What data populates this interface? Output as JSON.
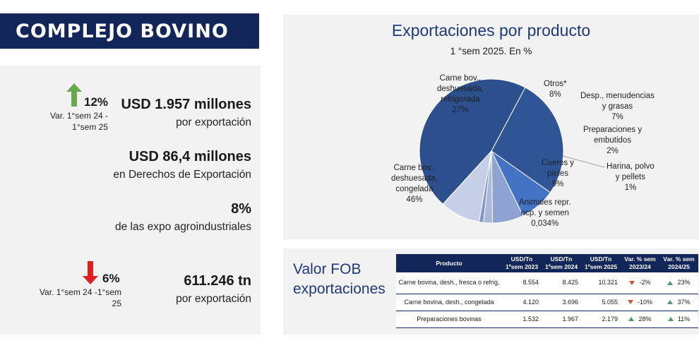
{
  "header": {
    "title": "COMPLEJO BOVINO"
  },
  "stats": {
    "export_value": {
      "amount": "USD 1.957 millones",
      "label": "por exportación",
      "var_pct": "12%",
      "var_label_1": "Var.  1°sem 24 -",
      "var_label_2": "1°sem 25",
      "direction": "up"
    },
    "duties": {
      "amount": "USD 86,4 millones",
      "label": "en Derechos de Exportación"
    },
    "share": {
      "amount": "8%",
      "label": "de las expo agroindustriales"
    },
    "volume": {
      "amount": "611.246 tn",
      "label": "por exportación",
      "var_pct": "6%",
      "var_label_1": "Var.  1°sem 24 -1°sem",
      "var_label_2": "25",
      "direction": "down"
    }
  },
  "colors": {
    "navy": "#13265a",
    "up_arrow": "#6aa84f",
    "down_arrow": "#e02020",
    "tri_up": "#4a9a7a",
    "tri_down": "#d9502e"
  },
  "chart_data": {
    "type": "pie",
    "title": "Exportaciones por producto",
    "subtitle": "1 °sem 2025. En %",
    "slices": [
      {
        "name_lines": [
          "Carne bov.,",
          "deshuesada,",
          "refrigerada"
        ],
        "pct_label": "27%",
        "value": 27,
        "color": "#2f5597"
      },
      {
        "name_lines": [
          "Otros*"
        ],
        "pct_label": "8%",
        "value": 8,
        "color": "#4472c4"
      },
      {
        "name_lines": [
          "Desp., menudencias",
          "y grasas"
        ],
        "pct_label": "7%",
        "value": 7,
        "color": "#8ea3d2"
      },
      {
        "name_lines": [
          "Preparaciones y",
          "embutidos"
        ],
        "pct_label": "2%",
        "value": 2,
        "color": "#aab8dc"
      },
      {
        "name_lines": [
          "Harina, polvo",
          "y pellets"
        ],
        "pct_label": "1%",
        "value": 1,
        "color": "#8497c7"
      },
      {
        "name_lines": [
          "Cueros y",
          "pieles"
        ],
        "pct_label": "9%",
        "value": 9,
        "color": "#c5cfe8"
      },
      {
        "name_lines": [
          "Animales repr.",
          "ncp. y semen"
        ],
        "pct_label": "0,034%",
        "value": 0.034,
        "color": "#dce3f2"
      },
      {
        "name_lines": [
          "Carne bov.,",
          "deshuesada,",
          "congelada"
        ],
        "pct_label": "46%",
        "value": 46,
        "color": "#2c4f8e"
      }
    ]
  },
  "fob": {
    "title_line1": "Valor FOB",
    "title_line2": "exportaciones",
    "headers": [
      [
        "Producto",
        ""
      ],
      [
        "USD/Tn",
        "1ºsem 2023"
      ],
      [
        "USD/Tn",
        "1ºsem 2024"
      ],
      [
        "USD/Tn",
        "1ºsem 2025"
      ],
      [
        "Var. % sem",
        "2023/24"
      ],
      [
        "Var. % sem",
        "2024/25"
      ]
    ],
    "rows": [
      {
        "product": "Carne bovina, desh., fresca o refrig.",
        "v2023": "8.554",
        "v2024": "8.425",
        "v2025": "10.321",
        "var1": "-2%",
        "var1_dir": "down",
        "var2": "23%",
        "var2_dir": "up"
      },
      {
        "product": "Carne bovina, desh., congelada",
        "v2023": "4.120",
        "v2024": "3.696",
        "v2025": "5.055",
        "var1": "-10%",
        "var1_dir": "down",
        "var2": "37%",
        "var2_dir": "up"
      },
      {
        "product": "Preparaciones bovinas",
        "v2023": "1.532",
        "v2024": "1.967",
        "v2025": "2.179",
        "var1": "28%",
        "var1_dir": "up",
        "var2": "11%",
        "var2_dir": "up"
      }
    ]
  }
}
